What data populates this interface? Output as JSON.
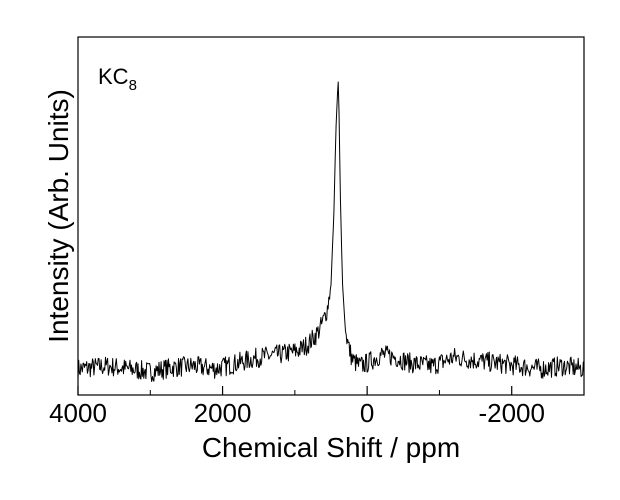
{
  "chart_data": {
    "type": "line",
    "xlabel": "Chemical Shift / ppm",
    "ylabel": "Intensity (Arb. Units)",
    "annotation": {
      "main": "KC",
      "sub": "8"
    },
    "xlim": [
      4000,
      -3000
    ],
    "ylim": [
      -0.08,
      1.0
    ],
    "x_reversed": true,
    "grid": false,
    "legend": "none",
    "x_ticks": [
      {
        "value": 4000,
        "label": "4000"
      },
      {
        "value": 2000,
        "label": "2000"
      },
      {
        "value": 0,
        "label": "0"
      },
      {
        "value": -2000,
        "label": "-2000"
      }
    ],
    "x_minor_ticks": [
      3000,
      1000,
      -1000,
      -3000
    ],
    "series": [
      {
        "color": "#000000",
        "x": [
          4000,
          3600,
          3300,
          3000,
          2700,
          2400,
          2100,
          1800,
          1500,
          1200,
          1000,
          900,
          800,
          700,
          650,
          600,
          550,
          500,
          460,
          430,
          410,
          400,
          390,
          370,
          340,
          300,
          250,
          200,
          100,
          0,
          -200,
          -400,
          -600,
          -900,
          -1200,
          -1500,
          -1800,
          -2100,
          -2400,
          -2700,
          -3000
        ],
        "y": [
          0.01,
          0.02,
          0.01,
          0.0,
          0.015,
          0.02,
          0.01,
          0.03,
          0.05,
          0.06,
          0.07,
          0.08,
          0.1,
          0.13,
          0.15,
          0.18,
          0.22,
          0.3,
          0.55,
          0.85,
          0.96,
          1.0,
          0.9,
          0.6,
          0.3,
          0.14,
          0.08,
          0.04,
          0.02,
          0.03,
          0.06,
          0.05,
          0.03,
          0.02,
          0.05,
          0.04,
          0.03,
          0.02,
          0.01,
          0.02,
          0.01
        ]
      }
    ]
  }
}
